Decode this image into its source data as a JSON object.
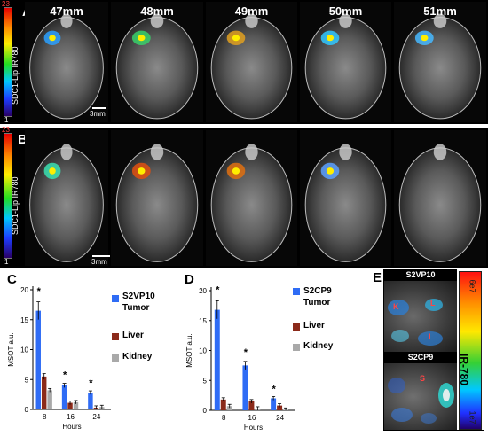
{
  "panels": {
    "a": "A",
    "b": "B",
    "c": "C",
    "d": "D",
    "e": "E"
  },
  "slices": [
    "47mm",
    "48mm",
    "49mm",
    "50mm",
    "51mm"
  ],
  "colorbar": {
    "label": "SDC1-Lip IR780",
    "max": "23",
    "min": "1"
  },
  "scalebar": "3mm",
  "charts": {
    "c": {
      "ylabel": "MSOT a.u.",
      "xlabel": "Hours",
      "legend": [
        "S2VP10 Tumor",
        "Liver",
        "Kidney"
      ]
    },
    "d": {
      "ylabel": "MSOT a.u.",
      "xlabel": "Hours",
      "legend": [
        "S2CP9 Tumor",
        "Liver",
        "Kidney"
      ]
    }
  },
  "panel_e": {
    "top_title": "S2VP10",
    "bottom_title": "S2CP9",
    "bar_label": "IR-780",
    "bar_max": "6e7",
    "bar_min": "1e7",
    "organ_marks": [
      "K",
      "L",
      "L",
      "S"
    ]
  },
  "chart_data": [
    {
      "type": "bar",
      "categories": [
        "8",
        "16",
        "24"
      ],
      "series": [
        {
          "name": "S2VP10 Tumor",
          "values": [
            16.5,
            4.0,
            2.8
          ],
          "color": "#2f6cf5"
        },
        {
          "name": "Liver",
          "values": [
            5.5,
            1.1,
            0.3
          ],
          "color": "#8b2a1a"
        },
        {
          "name": "Kidney",
          "values": [
            3.2,
            1.2,
            0.4
          ],
          "color": "#a9a9a9"
        }
      ],
      "significance": [
        "*",
        "*",
        "*"
      ],
      "yticks": [
        "0",
        "5",
        "10",
        "15",
        "20"
      ],
      "ylim": [
        0,
        20
      ],
      "xlabel": "Hours",
      "ylabel": "MSOT a.u.",
      "legend_position": "right"
    },
    {
      "type": "bar",
      "categories": [
        "8",
        "16",
        "24"
      ],
      "series": [
        {
          "name": "S2CP9 Tumor",
          "values": [
            16.8,
            7.5,
            2.0
          ],
          "color": "#2f6cf5"
        },
        {
          "name": "Liver",
          "values": [
            1.8,
            1.5,
            0.8
          ],
          "color": "#8b2a1a"
        },
        {
          "name": "Kidney",
          "values": [
            0.7,
            0.3,
            0.1
          ],
          "color": "#a9a9a9"
        }
      ],
      "significance": [
        "*",
        "*",
        "*"
      ],
      "yticks": [
        "0",
        "5",
        "10",
        "15",
        "20"
      ],
      "ylim": [
        0,
        20
      ],
      "xlabel": "Hours",
      "ylabel": "MSOT a.u.",
      "legend_position": "right"
    }
  ]
}
